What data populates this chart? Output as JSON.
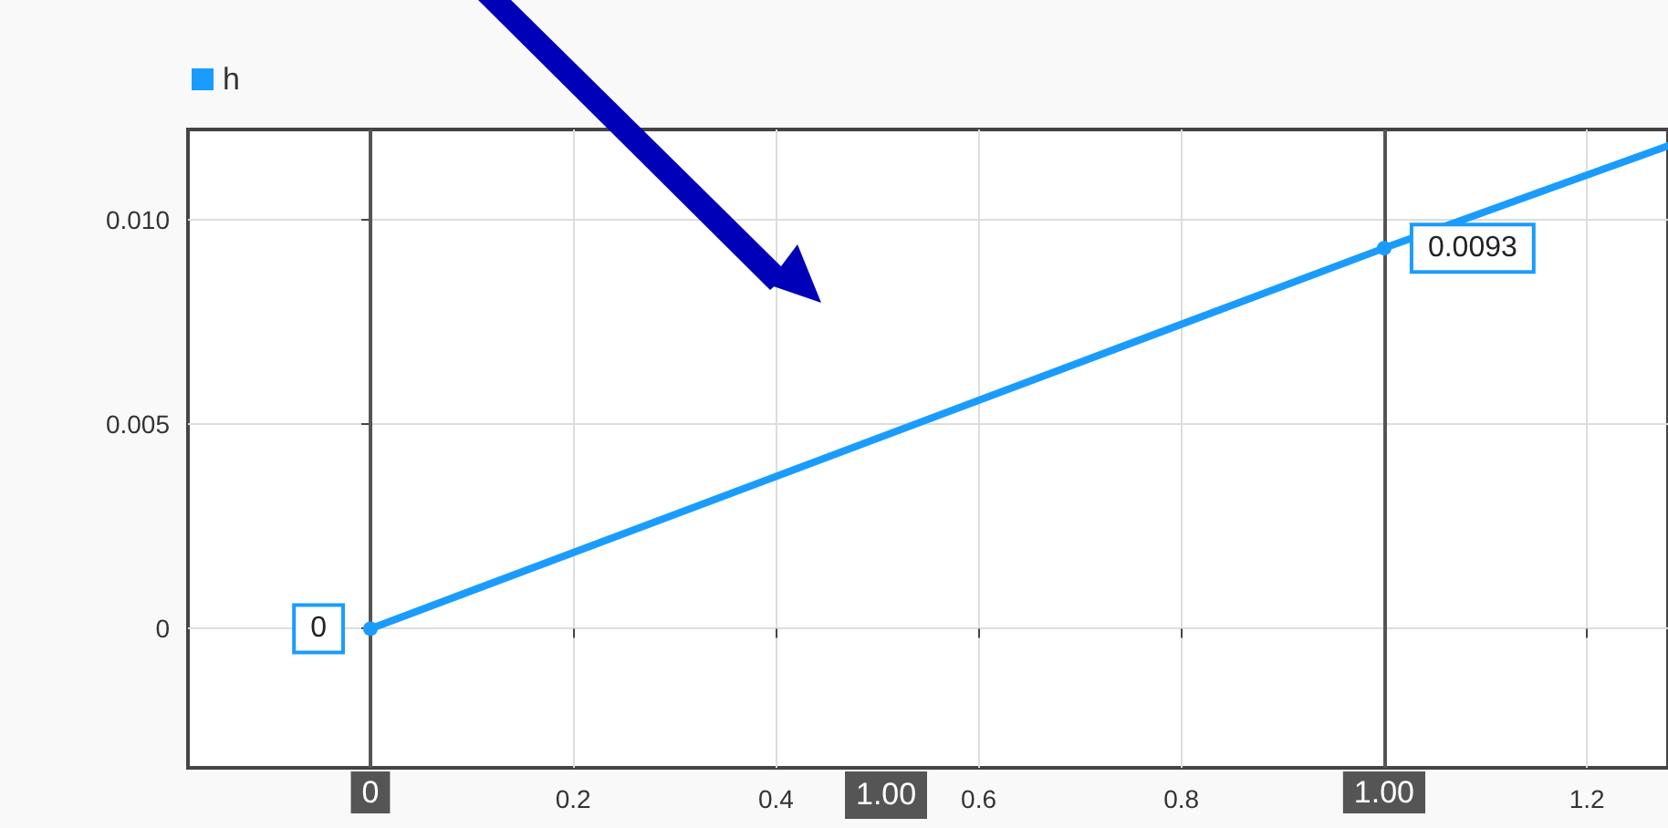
{
  "chart_data": {
    "type": "line",
    "legend": "top left",
    "grid": true,
    "marker": "circle",
    "line_style": "solid",
    "x": [
      0,
      1,
      1.28
    ],
    "series": [
      {
        "name": "h",
        "color": "#1a9cff",
        "values": [
          0,
          0.0093,
          0.0118
        ],
        "value_labels": [
          "0",
          "0.0093",
          null
        ]
      }
    ],
    "xlim": [
      -0.18,
      1.28
    ],
    "xticks": [
      0.2,
      0.4,
      0.6,
      0.8,
      {
        "value": 1,
        "label": null
      },
      1.2
    ],
    "ylim": [
      -0.0034,
      0.0122
    ],
    "yticks": [
      0,
      0.005,
      {
        "value": 0.01,
        "label": "0.010"
      }
    ],
    "ref_lines": [
      {
        "axis": "x",
        "value": 0,
        "label": "0",
        "color": "#555555"
      },
      {
        "axis": "x",
        "value": 1,
        "label": "1.00",
        "color": "#555555"
      }
    ],
    "annotations": [
      "1.00"
    ]
  }
}
